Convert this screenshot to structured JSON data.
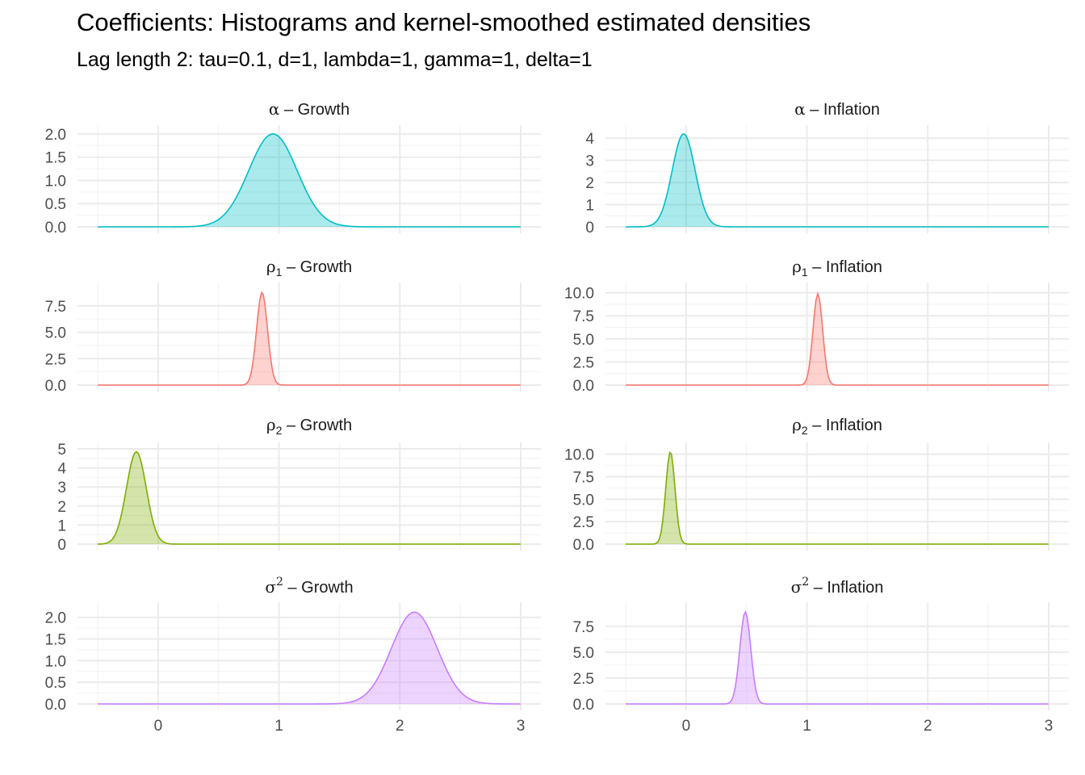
{
  "title": "Coefficients: Histograms and kernel-smoothed estimated densities",
  "subtitle": "Lag length 2: tau=0.1, d=1, lambda=1, gamma=1, delta=1",
  "chart_data": {
    "type": "area",
    "layout": "facet-grid 4 rows x 2 columns",
    "grid": true,
    "legend": "none",
    "xlim": [
      -0.5,
      3.0
    ],
    "x_ticks": [
      0,
      1,
      2,
      3
    ],
    "x_tick_labels": [
      "0",
      "1",
      "2",
      "3"
    ],
    "panels": [
      {
        "param": "alpha",
        "symbol": "α",
        "script": "",
        "script_type": "",
        "series": "Growth",
        "strip": "α – Growth",
        "color": "#00BFC4",
        "peak_x": 0.95,
        "sd": 0.2,
        "peak_density": 2.0,
        "ylim": [
          0,
          2.05
        ],
        "y_ticks": [
          0.0,
          0.5,
          1.0,
          1.5,
          2.0
        ],
        "y_tick_labels": [
          "0.0",
          "0.5",
          "1.0",
          "1.5",
          "2.0"
        ]
      },
      {
        "param": "alpha",
        "symbol": "α",
        "script": "",
        "script_type": "",
        "series": "Inflation",
        "strip": "α – Inflation",
        "color": "#00BFC4",
        "peak_x": -0.02,
        "sd": 0.095,
        "peak_density": 4.2,
        "ylim": [
          0,
          4.3
        ],
        "y_ticks": [
          0,
          1,
          2,
          3,
          4
        ],
        "y_tick_labels": [
          "0",
          "1",
          "2",
          "3",
          "4"
        ]
      },
      {
        "param": "rho1",
        "symbol": "ρ",
        "script": "1",
        "script_type": "sub",
        "series": "Growth",
        "strip": "ρ1 – Growth",
        "color": "#F8766D",
        "peak_x": 0.86,
        "sd": 0.045,
        "peak_density": 8.8,
        "ylim": [
          0,
          9.1
        ],
        "y_ticks": [
          0.0,
          2.5,
          5.0,
          7.5
        ],
        "y_tick_labels": [
          "0.0",
          "2.5",
          "5.0",
          "7.5"
        ]
      },
      {
        "param": "rho1",
        "symbol": "ρ",
        "script": "1",
        "script_type": "sub",
        "series": "Inflation",
        "strip": "ρ1 – Inflation",
        "color": "#F8766D",
        "peak_x": 1.09,
        "sd": 0.04,
        "peak_density": 9.9,
        "ylim": [
          0,
          10.4
        ],
        "y_ticks": [
          0.0,
          2.5,
          5.0,
          7.5,
          10.0
        ],
        "y_tick_labels": [
          "0.0",
          "2.5",
          "5.0",
          "7.5",
          "10.0"
        ]
      },
      {
        "param": "rho2",
        "symbol": "ρ",
        "script": "2",
        "script_type": "sub",
        "series": "Growth",
        "strip": "ρ2 – Growth",
        "color": "#7CAE00",
        "peak_x": -0.18,
        "sd": 0.082,
        "peak_density": 4.85,
        "ylim": [
          0,
          5.0
        ],
        "y_ticks": [
          0,
          1,
          2,
          3,
          4,
          5
        ],
        "y_tick_labels": [
          "0",
          "1",
          "2",
          "3",
          "4",
          "5"
        ]
      },
      {
        "param": "rho2",
        "symbol": "ρ",
        "script": "2",
        "script_type": "sub",
        "series": "Inflation",
        "strip": "ρ2 – Inflation",
        "color": "#7CAE00",
        "peak_x": -0.13,
        "sd": 0.038,
        "peak_density": 10.3,
        "ylim": [
          0,
          10.6
        ],
        "y_ticks": [
          0.0,
          2.5,
          5.0,
          7.5,
          10.0
        ],
        "y_tick_labels": [
          "0.0",
          "2.5",
          "5.0",
          "7.5",
          "10.0"
        ]
      },
      {
        "param": "sigma2",
        "symbol": "σ",
        "script": "2",
        "script_type": "sup",
        "series": "Growth",
        "strip": "σ2 – Growth",
        "color": "#C77CFF",
        "peak_x": 2.12,
        "sd": 0.19,
        "peak_density": 2.12,
        "ylim": [
          0,
          2.2
        ],
        "y_ticks": [
          0.0,
          0.5,
          1.0,
          1.5,
          2.0
        ],
        "y_tick_labels": [
          "0.0",
          "0.5",
          "1.0",
          "1.5",
          "2.0"
        ]
      },
      {
        "param": "sigma2",
        "symbol": "σ",
        "script": "2",
        "script_type": "sup",
        "series": "Inflation",
        "strip": "σ2 – Inflation",
        "color": "#C77CFF",
        "peak_x": 0.49,
        "sd": 0.045,
        "peak_density": 8.9,
        "ylim": [
          0,
          9.2
        ],
        "y_ticks": [
          0.0,
          2.5,
          5.0,
          7.5
        ],
        "y_tick_labels": [
          "0.0",
          "2.5",
          "5.0",
          "7.5"
        ]
      }
    ]
  }
}
